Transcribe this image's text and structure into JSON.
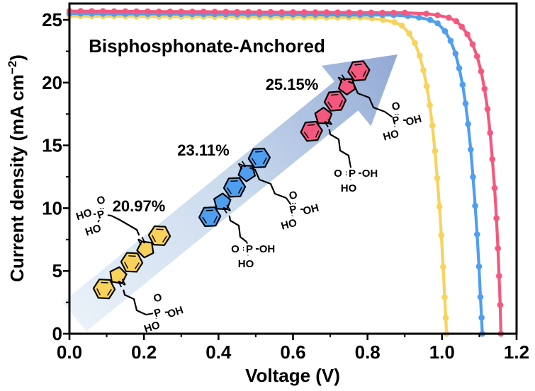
{
  "figure": {
    "title": "Bisphosphonate-Anchored"
  },
  "axes": {
    "x": {
      "label": "Voltage (V)",
      "ticks": [
        "0.0",
        "0.2",
        "0.4",
        "0.6",
        "0.8",
        "1.0",
        "1.2"
      ]
    },
    "y": {
      "label_main": "Current density (mA cm",
      "label_sup": "−2",
      "label_close": ")",
      "ticks": [
        "0",
        "5",
        "10",
        "15",
        "20",
        "25"
      ]
    }
  },
  "annotations": {
    "efficiencies": [
      {
        "text": "20.97%",
        "color": "#F7A600"
      },
      {
        "text": "23.11%",
        "color": "#2E74B5"
      },
      {
        "text": "25.15%",
        "color": "#F25B5B"
      }
    ],
    "arrow": {
      "from": "#EAF1F9",
      "mid": "#C9DAEE",
      "to": "#92A9D4"
    }
  },
  "molecule_labels": {
    "n": "N",
    "p": "P",
    "o": "O",
    "oh": "OH",
    "ho": "HO"
  },
  "chart_data": {
    "type": "line",
    "title": "Bisphosphonate-Anchored",
    "xlabel": "Voltage (V)",
    "ylabel": "Current density (mA cm⁻²)",
    "xlim": [
      0,
      1.2
    ],
    "ylim": [
      0,
      26.3
    ],
    "grid": false,
    "legend": "none",
    "series": [
      {
        "name": "20.97%",
        "efficiency_label": "20.97%",
        "color": "#F9D25C",
        "points": [
          [
            0.0,
            25.3
          ],
          [
            0.03,
            25.3
          ],
          [
            0.06,
            25.29
          ],
          [
            0.09,
            25.29
          ],
          [
            0.12,
            25.28
          ],
          [
            0.15,
            25.28
          ],
          [
            0.18,
            25.27
          ],
          [
            0.21,
            25.27
          ],
          [
            0.24,
            25.26
          ],
          [
            0.27,
            25.26
          ],
          [
            0.3,
            25.25
          ],
          [
            0.33,
            25.25
          ],
          [
            0.36,
            25.25
          ],
          [
            0.39,
            25.24
          ],
          [
            0.42,
            25.24
          ],
          [
            0.45,
            25.23
          ],
          [
            0.48,
            25.23
          ],
          [
            0.51,
            25.22
          ],
          [
            0.54,
            25.22
          ],
          [
            0.57,
            25.21
          ],
          [
            0.6,
            25.21
          ],
          [
            0.63,
            25.2
          ],
          [
            0.66,
            25.2
          ],
          [
            0.69,
            25.19
          ],
          [
            0.72,
            25.19
          ],
          [
            0.75,
            25.19
          ],
          [
            0.78,
            25.18
          ],
          [
            0.812,
            25.12
          ],
          [
            0.842,
            25.0
          ],
          [
            0.872,
            24.82
          ],
          [
            0.892,
            24.55
          ],
          [
            0.912,
            23.92
          ],
          [
            0.927,
            23.16
          ],
          [
            0.94,
            22.15
          ],
          [
            0.95,
            21.0
          ],
          [
            0.959,
            19.7
          ],
          [
            0.967,
            18.2
          ],
          [
            0.974,
            16.58
          ],
          [
            0.981,
            14.56
          ],
          [
            0.987,
            12.4
          ],
          [
            0.993,
            10.12
          ],
          [
            0.998,
            7.85
          ],
          [
            1.003,
            5.32
          ],
          [
            1.007,
            2.91
          ],
          [
            1.01,
            1.26
          ],
          [
            1.012,
            0.0
          ]
        ]
      },
      {
        "name": "23.11%",
        "efficiency_label": "23.11%",
        "color": "#4F9EF0",
        "points": [
          [
            0.0,
            25.5
          ],
          [
            0.03,
            25.5
          ],
          [
            0.06,
            25.49
          ],
          [
            0.09,
            25.49
          ],
          [
            0.12,
            25.48
          ],
          [
            0.15,
            25.48
          ],
          [
            0.18,
            25.47
          ],
          [
            0.21,
            25.47
          ],
          [
            0.24,
            25.47
          ],
          [
            0.27,
            25.46
          ],
          [
            0.3,
            25.46
          ],
          [
            0.33,
            25.45
          ],
          [
            0.36,
            25.45
          ],
          [
            0.39,
            25.45
          ],
          [
            0.42,
            25.44
          ],
          [
            0.45,
            25.44
          ],
          [
            0.48,
            25.43
          ],
          [
            0.51,
            25.43
          ],
          [
            0.54,
            25.42
          ],
          [
            0.57,
            25.42
          ],
          [
            0.6,
            25.42
          ],
          [
            0.63,
            25.41
          ],
          [
            0.66,
            25.41
          ],
          [
            0.69,
            25.4
          ],
          [
            0.72,
            25.4
          ],
          [
            0.75,
            25.39
          ],
          [
            0.78,
            25.39
          ],
          [
            0.81,
            25.39
          ],
          [
            0.84,
            25.38
          ],
          [
            0.87,
            25.38
          ],
          [
            0.908,
            25.31
          ],
          [
            0.938,
            25.19
          ],
          [
            0.968,
            25.0
          ],
          [
            0.988,
            24.73
          ],
          [
            1.008,
            24.1
          ],
          [
            1.023,
            23.33
          ],
          [
            1.036,
            22.31
          ],
          [
            1.046,
            21.15
          ],
          [
            1.055,
            19.84
          ],
          [
            1.063,
            18.33
          ],
          [
            1.07,
            16.7
          ],
          [
            1.077,
            14.67
          ],
          [
            1.083,
            12.49
          ],
          [
            1.089,
            10.19
          ],
          [
            1.094,
            7.91
          ],
          [
            1.099,
            5.36
          ],
          [
            1.103,
            2.93
          ],
          [
            1.106,
            1.27
          ],
          [
            1.108,
            0.0
          ]
        ]
      },
      {
        "name": "25.15%",
        "efficiency_label": "25.15%",
        "color": "#F4587E",
        "points": [
          [
            0.0,
            25.7
          ],
          [
            0.03,
            25.7
          ],
          [
            0.06,
            25.69
          ],
          [
            0.09,
            25.69
          ],
          [
            0.12,
            25.68
          ],
          [
            0.15,
            25.68
          ],
          [
            0.18,
            25.67
          ],
          [
            0.21,
            25.67
          ],
          [
            0.24,
            25.66
          ],
          [
            0.27,
            25.66
          ],
          [
            0.3,
            25.66
          ],
          [
            0.33,
            25.65
          ],
          [
            0.36,
            25.65
          ],
          [
            0.39,
            25.64
          ],
          [
            0.42,
            25.64
          ],
          [
            0.45,
            25.63
          ],
          [
            0.48,
            25.63
          ],
          [
            0.51,
            25.62
          ],
          [
            0.54,
            25.62
          ],
          [
            0.57,
            25.61
          ],
          [
            0.6,
            25.61
          ],
          [
            0.63,
            25.61
          ],
          [
            0.66,
            25.6
          ],
          [
            0.69,
            25.6
          ],
          [
            0.72,
            25.59
          ],
          [
            0.75,
            25.59
          ],
          [
            0.78,
            25.58
          ],
          [
            0.81,
            25.58
          ],
          [
            0.84,
            25.57
          ],
          [
            0.87,
            25.57
          ],
          [
            0.9,
            25.56
          ],
          [
            0.958,
            25.49
          ],
          [
            0.988,
            25.37
          ],
          [
            1.018,
            25.18
          ],
          [
            1.038,
            24.9
          ],
          [
            1.053,
            24.45
          ],
          [
            1.068,
            23.85
          ],
          [
            1.082,
            23.05
          ],
          [
            1.094,
            22.1
          ],
          [
            1.105,
            20.9
          ],
          [
            1.114,
            19.5
          ],
          [
            1.122,
            17.9
          ],
          [
            1.129,
            16.0
          ],
          [
            1.135,
            13.9
          ],
          [
            1.141,
            11.6
          ],
          [
            1.146,
            9.2
          ],
          [
            1.15,
            6.8
          ],
          [
            1.153,
            4.6
          ],
          [
            1.156,
            2.3
          ],
          [
            1.158,
            0.0
          ]
        ]
      }
    ]
  }
}
